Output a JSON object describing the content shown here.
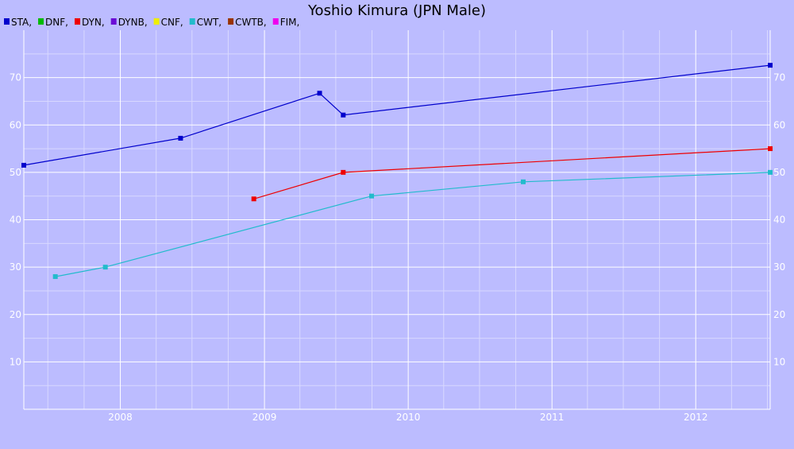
{
  "chart_data": {
    "type": "line",
    "title": "Yoshio Kimura (JPN Male)",
    "xlabel": "",
    "ylabel": "",
    "x_axis_type": "date",
    "xlim": [
      "2007-05-01",
      "2012-07-08"
    ],
    "ylim": [
      0,
      80
    ],
    "x_ticks": [
      "2008",
      "2009",
      "2010",
      "2011",
      "2012"
    ],
    "y_ticks": [
      10,
      20,
      30,
      40,
      50,
      60,
      70
    ],
    "grid": true,
    "legend": [
      {
        "label": "STA,",
        "color": "#0000cc"
      },
      {
        "label": "DNF,",
        "color": "#00bb00"
      },
      {
        "label": "DYN,",
        "color": "#ee0000"
      },
      {
        "label": "DYNB,",
        "color": "#6a0cd6"
      },
      {
        "label": "CNF,",
        "color": "#eeee00"
      },
      {
        "label": "CWT,",
        "color": "#22bbcc"
      },
      {
        "label": "CWTB,",
        "color": "#993300"
      },
      {
        "label": "FIM,",
        "color": "#ee00ee"
      }
    ],
    "series": [
      {
        "name": "STA",
        "color": "#0000cc",
        "points": [
          {
            "x": "2007-05-01",
            "y": 51.5
          },
          {
            "x": "2008-06-02",
            "y": 57.2
          },
          {
            "x": "2009-05-21",
            "y": 66.7
          },
          {
            "x": "2009-07-20",
            "y": 62.1
          },
          {
            "x": "2012-07-08",
            "y": 72.6
          }
        ]
      },
      {
        "name": "DYN",
        "color": "#ee0000",
        "points": [
          {
            "x": "2008-12-05",
            "y": 44.4
          },
          {
            "x": "2009-07-20",
            "y": 50.0
          },
          {
            "x": "2012-07-08",
            "y": 55.0
          }
        ]
      },
      {
        "name": "CWT",
        "color": "#22bbcc",
        "points": [
          {
            "x": "2007-07-20",
            "y": 28.0
          },
          {
            "x": "2007-11-24",
            "y": 30.0
          },
          {
            "x": "2009-09-30",
            "y": 45.0
          },
          {
            "x": "2010-10-20",
            "y": 48.0
          },
          {
            "x": "2012-07-08",
            "y": 50.0
          }
        ]
      }
    ]
  }
}
